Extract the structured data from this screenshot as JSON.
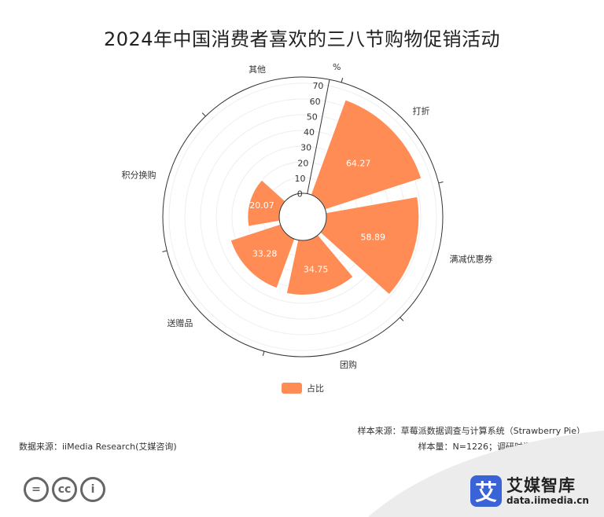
{
  "chart_data": {
    "type": "polar-bar",
    "title": "2024年中国消费者喜欢的三八节购物促销活动",
    "unit_label": "%",
    "categories": [
      "打折",
      "满减优惠券",
      "团购",
      "送赠品",
      "积分换购",
      "其他"
    ],
    "series": [
      {
        "name": "占比",
        "values": [
          64.27,
          58.89,
          34.75,
          33.28,
          20.07,
          0.16
        ],
        "color": "#FF8C55"
      }
    ],
    "radial_ticks": [
      "0",
      "10",
      "20",
      "30",
      "40",
      "50",
      "60",
      "70"
    ],
    "radial_range": [
      0,
      70
    ],
    "grid": true,
    "legend_position": "bottom"
  },
  "footer": {
    "sample_source": "样本来源：草莓派数据调查与计算系统（Strawberry Pie）",
    "sample_size": "样本量：N=1226；调研时间：2024年3月",
    "data_source": "数据来源：iiMedia Research(艾媒咨询)",
    "brand_name": "艾媒智库",
    "brand_url": "data.iimedia.cn",
    "brand_logo_char": "艾"
  },
  "license_icons": [
    "equals-icon",
    "cc-icon",
    "person-icon"
  ],
  "license_glyphs": [
    "=",
    "cc",
    "i"
  ]
}
